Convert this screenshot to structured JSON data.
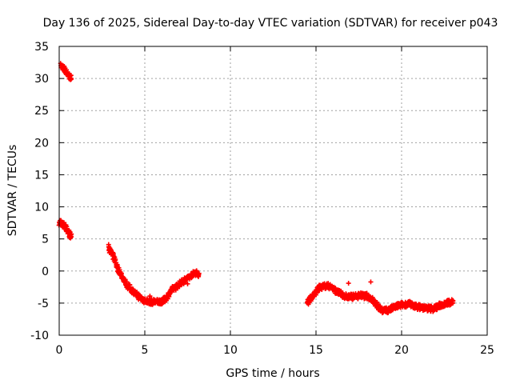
{
  "chart_data": {
    "type": "scatter",
    "title": "Day 136 of 2025, Sidereal Day-to-day VTEC variation (SDTVAR) for receiver p043",
    "xlabel": "GPS time / hours",
    "ylabel": "SDTVAR / TECUs",
    "xlim": [
      0,
      25
    ],
    "ylim": [
      -10,
      35
    ],
    "xticks": [
      0,
      5,
      10,
      15,
      20,
      25
    ],
    "yticks": [
      -10,
      -5,
      0,
      5,
      10,
      15,
      20,
      25,
      30,
      35
    ],
    "grid": true,
    "marker": "plus",
    "color": "#ff0000",
    "series": [
      {
        "name": "SDTVAR",
        "segments": [
          {
            "x": [
              0.1,
              0.25,
              0.4,
              0.55,
              0.7
            ],
            "y": [
              32,
              31.6,
              31,
              30.5,
              30
            ]
          },
          {
            "x": [
              0.0,
              0.15,
              0.3,
              0.45,
              0.6,
              0.7
            ],
            "y": [
              7.6,
              7.4,
              7.0,
              6.4,
              5.8,
              5.3
            ]
          },
          {
            "x": [
              2.9,
              3.0,
              3.2,
              3.4,
              3.6,
              3.8,
              4.0,
              4.2,
              4.4,
              4.6,
              4.8,
              5.0,
              5.2,
              5.4,
              5.6,
              5.8,
              6.0,
              6.2,
              6.4,
              6.6,
              6.8,
              7.0,
              7.2,
              7.4,
              7.6,
              7.8,
              8.0,
              8.15
            ],
            "y": [
              3.8,
              3.0,
              2.0,
              0.5,
              -0.5,
              -1.5,
              -2.3,
              -2.8,
              -3.4,
              -3.9,
              -4.3,
              -4.6,
              -4.7,
              -4.8,
              -4.8,
              -4.8,
              -4.7,
              -4.4,
              -3.6,
              -2.9,
              -2.5,
              -2.1,
              -1.7,
              -1.3,
              -0.9,
              -0.5,
              -0.2,
              -0.5
            ]
          },
          {
            "x": [
              14.5,
              14.6,
              14.8,
              15.0,
              15.2,
              15.4,
              15.6,
              15.8,
              16.0,
              16.2,
              16.4,
              16.6,
              16.8,
              17.0,
              17.2,
              17.4,
              17.6,
              17.8,
              18.0,
              18.2,
              18.4,
              18.6,
              18.8,
              19.0,
              19.2,
              19.4,
              19.6,
              19.8,
              20.0,
              20.2,
              20.4,
              20.6,
              20.8,
              21.0,
              21.2,
              21.4,
              21.6,
              21.8,
              22.0,
              22.2,
              22.4,
              22.6,
              22.8,
              23.0
            ],
            "y": [
              -5.0,
              -4.4,
              -4.0,
              -3.3,
              -2.6,
              -2.4,
              -2.3,
              -2.4,
              -2.7,
              -3.2,
              -3.5,
              -3.8,
              -4.0,
              -4.0,
              -4.0,
              -3.9,
              -3.8,
              -3.9,
              -3.9,
              -4.2,
              -4.8,
              -5.5,
              -6.0,
              -6.2,
              -6.1,
              -5.9,
              -5.6,
              -5.4,
              -5.3,
              -5.2,
              -5.1,
              -5.3,
              -5.5,
              -5.6,
              -5.7,
              -5.8,
              -5.8,
              -5.9,
              -5.7,
              -5.4,
              -5.2,
              -5.0,
              -4.9,
              -4.7
            ]
          }
        ],
        "outliers": {
          "x": [
            7.5,
            16.9,
            18.2,
            5.3
          ],
          "y": [
            -2.0,
            -1.9,
            -1.7,
            -3.9
          ]
        }
      }
    ]
  }
}
